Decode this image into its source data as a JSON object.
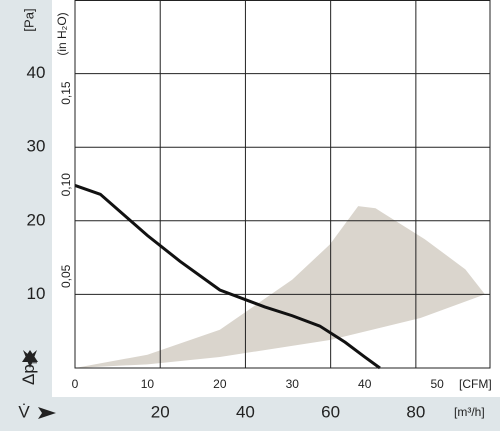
{
  "chart_data": {
    "type": "line",
    "y_unit": "[Pa]",
    "y2_unit": "(in H₂O)",
    "y_symbol": "Δp",
    "y_symbol_sub": "f",
    "x_symbol": "V̇",
    "x_unit": "[CFM]",
    "x2_unit": "[m³/h]",
    "xlim": [
      0,
      57.3
    ],
    "xticks": [
      0,
      10,
      20,
      30,
      40,
      50
    ],
    "x2lim": [
      0,
      97.4
    ],
    "x2ticks": [
      20,
      40,
      60,
      80
    ],
    "ylim": [
      0,
      50
    ],
    "yticks": [
      10,
      20,
      30,
      40
    ],
    "y2lim": [
      0,
      0.2008
    ],
    "y2ticks": [
      {
        "value": 0.05,
        "label": "0,05"
      },
      {
        "value": 0.1,
        "label": "0,10"
      },
      {
        "value": 0.15,
        "label": "0,15"
      }
    ],
    "grid": true,
    "series": [
      {
        "kind": "area",
        "color": "#dad5cd",
        "x": [
          0,
          10,
          20,
          30,
          35.2,
          39.1,
          41.5,
          48.3,
          53.9,
          56.6,
          47.7,
          35.2,
          20,
          10
        ],
        "values": [
          0,
          1.8,
          5.2,
          12,
          16.8,
          22,
          21.7,
          17.5,
          13.4,
          10,
          6.8,
          3.8,
          1.5,
          0.5
        ]
      },
      {
        "kind": "curve",
        "color": "#111111",
        "x": [
          0,
          3.5,
          10,
          14.5,
          20,
          23.5,
          26.2,
          30,
          33.8,
          37.3,
          40,
          42.1
        ],
        "values": [
          24.8,
          23.6,
          18,
          14.5,
          10.6,
          9.3,
          8.3,
          7.1,
          5.7,
          3.5,
          1.5,
          0
        ]
      }
    ]
  }
}
